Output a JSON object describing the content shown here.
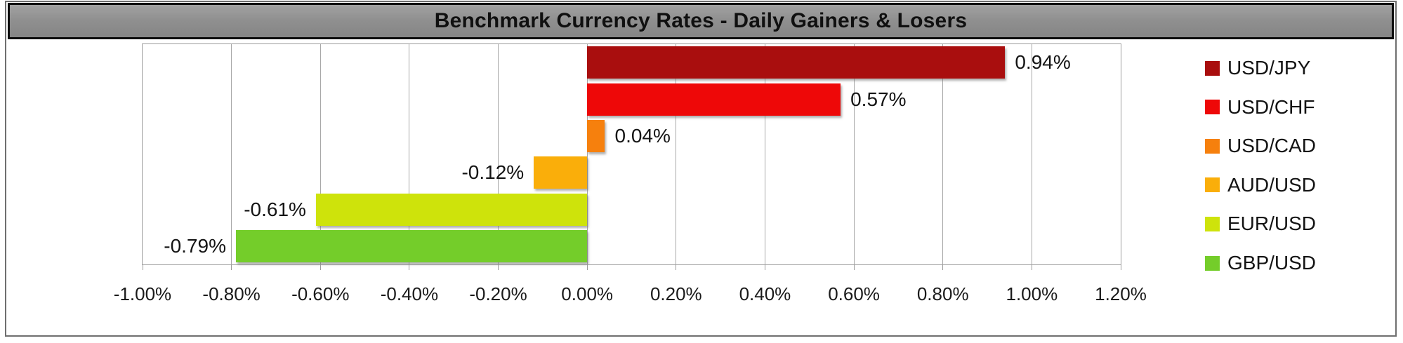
{
  "chart_data": {
    "type": "bar",
    "orientation": "horizontal",
    "title": "Benchmark Currency Rates - Daily Gainers & Losers",
    "categories": [
      "USD/JPY",
      "USD/CHF",
      "USD/CAD",
      "AUD/USD",
      "EUR/USD",
      "GBP/USD"
    ],
    "values": [
      0.94,
      0.57,
      0.04,
      -0.12,
      -0.61,
      -0.79
    ],
    "data_labels": [
      "0.94%",
      "0.57%",
      "0.04%",
      "-0.12%",
      "-0.61%",
      "-0.79%"
    ],
    "bar_colors": [
      "#a90e0e",
      "#ee0808",
      "#f6800d",
      "#faae0a",
      "#cee30b",
      "#74cd2a"
    ],
    "xlabel": "",
    "ylabel": "",
    "x_axis": {
      "min": -1.0,
      "max": 1.2,
      "step": 0.2,
      "tick_labels": [
        "-1.00%",
        "-0.80%",
        "-0.60%",
        "-0.40%",
        "-0.20%",
        "0.00%",
        "0.20%",
        "0.40%",
        "0.60%",
        "0.80%",
        "1.00%",
        "1.20%"
      ]
    },
    "grid": true,
    "legend": {
      "position": "right",
      "entries": [
        {
          "label": "USD/JPY",
          "color": "#a90e0e"
        },
        {
          "label": "USD/CHF",
          "color": "#ee0808"
        },
        {
          "label": "USD/CAD",
          "color": "#f6800d"
        },
        {
          "label": "AUD/USD",
          "color": "#faae0a"
        },
        {
          "label": "EUR/USD",
          "color": "#cee30b"
        },
        {
          "label": "GBP/USD",
          "color": "#74cd2a"
        }
      ]
    }
  },
  "theme": {
    "title_bg": "#8f8f8f",
    "title_border": "#0c0c0c",
    "title_text": "#101010",
    "outer_border": "#6f6f6f",
    "plot_border": "#9c9c9c",
    "gridline": "#a8a8a8",
    "axis_text": "#1a1a1a",
    "label_text": "#141414",
    "background": "#ffffff"
  }
}
